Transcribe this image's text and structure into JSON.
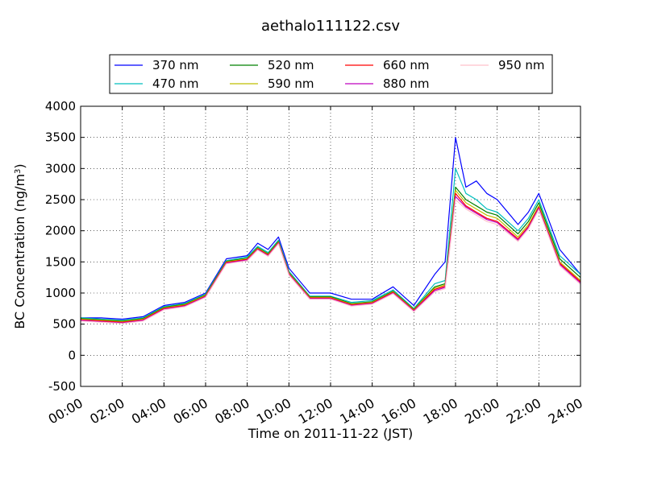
{
  "chart_data": {
    "type": "line",
    "title": "aethalo111122.csv",
    "xlabel": "Time on 2011-11-22 (JST)",
    "ylabel": "BC Concentration (ng/m³)",
    "ylabel_parts": {
      "prefix": "BC Concentration (ng/m",
      "superscript": "3",
      "suffix": ")"
    },
    "xlim": [
      "00:00",
      "24:00"
    ],
    "ylim": [
      -500,
      4000
    ],
    "x_ticks": [
      "00:00",
      "02:00",
      "04:00",
      "06:00",
      "08:00",
      "10:00",
      "12:00",
      "14:00",
      "16:00",
      "18:00",
      "20:00",
      "22:00",
      "24:00"
    ],
    "y_ticks": [
      -500,
      0,
      500,
      1000,
      1500,
      2000,
      2500,
      3000,
      3500,
      4000
    ],
    "grid": true,
    "legend_position": "top, above plot",
    "x": [
      "00:00",
      "01:00",
      "02:00",
      "03:00",
      "04:00",
      "05:00",
      "06:00",
      "07:00",
      "08:00",
      "08:30",
      "09:00",
      "09:30",
      "10:00",
      "11:00",
      "12:00",
      "13:00",
      "14:00",
      "15:00",
      "16:00",
      "17:00",
      "17:30",
      "18:00",
      "18:30",
      "19:00",
      "19:30",
      "20:00",
      "21:00",
      "21:30",
      "22:00",
      "23:00",
      "24:00"
    ],
    "series": [
      {
        "name": "370 nm",
        "color": "#0000ff",
        "values": [
          600,
          600,
          580,
          620,
          800,
          850,
          1000,
          1550,
          1600,
          1800,
          1700,
          1900,
          1400,
          1000,
          1000,
          900,
          900,
          1100,
          800,
          1300,
          1500,
          3500,
          2700,
          2800,
          2600,
          2500,
          2100,
          2300,
          2600,
          1700,
          1300
        ]
      },
      {
        "name": "470 nm",
        "color": "#00bfbf",
        "values": [
          600,
          580,
          560,
          600,
          780,
          830,
          980,
          1520,
          1580,
          1750,
          1650,
          1850,
          1350,
          950,
          950,
          850,
          880,
          1050,
          750,
          1150,
          1200,
          3000,
          2600,
          2500,
          2350,
          2300,
          2000,
          2200,
          2500,
          1600,
          1300
        ]
      },
      {
        "name": "520 nm",
        "color": "#008000",
        "values": [
          590,
          570,
          550,
          590,
          770,
          820,
          970,
          1510,
          1560,
          1730,
          1630,
          1830,
          1330,
          940,
          940,
          830,
          860,
          1030,
          740,
          1100,
          1150,
          2700,
          2500,
          2400,
          2300,
          2250,
          1950,
          2150,
          2450,
          1550,
          1250
        ]
      },
      {
        "name": "590 nm",
        "color": "#bfbf00",
        "values": [
          580,
          560,
          540,
          580,
          760,
          810,
          960,
          1500,
          1550,
          1720,
          1620,
          1820,
          1320,
          930,
          930,
          820,
          850,
          1020,
          730,
          1080,
          1130,
          2650,
          2450,
          2350,
          2250,
          2200,
          1900,
          2100,
          2400,
          1500,
          1200
        ]
      },
      {
        "name": "660 nm",
        "color": "#ff0000",
        "values": [
          570,
          550,
          530,
          570,
          750,
          800,
          950,
          1490,
          1540,
          1710,
          1610,
          1810,
          1310,
          920,
          920,
          810,
          840,
          1010,
          720,
          1060,
          1110,
          2600,
          2400,
          2300,
          2200,
          2150,
          1870,
          2070,
          2380,
          1480,
          1180
        ]
      },
      {
        "name": "880 nm",
        "color": "#bf00bf",
        "values": [
          560,
          540,
          520,
          560,
          740,
          790,
          940,
          1480,
          1530,
          1700,
          1600,
          1800,
          1300,
          910,
          910,
          800,
          830,
          1000,
          710,
          1040,
          1090,
          2550,
          2380,
          2280,
          2180,
          2130,
          1850,
          2050,
          2360,
          1460,
          1160
        ]
      },
      {
        "name": "950 nm",
        "color": "#ffc0cb",
        "values": [
          550,
          530,
          510,
          550,
          730,
          780,
          930,
          1470,
          1520,
          1690,
          1590,
          1790,
          1290,
          900,
          900,
          790,
          820,
          990,
          700,
          1020,
          1070,
          2500,
          2350,
          2250,
          2150,
          2100,
          1830,
          2030,
          2340,
          1440,
          1140
        ]
      }
    ]
  }
}
